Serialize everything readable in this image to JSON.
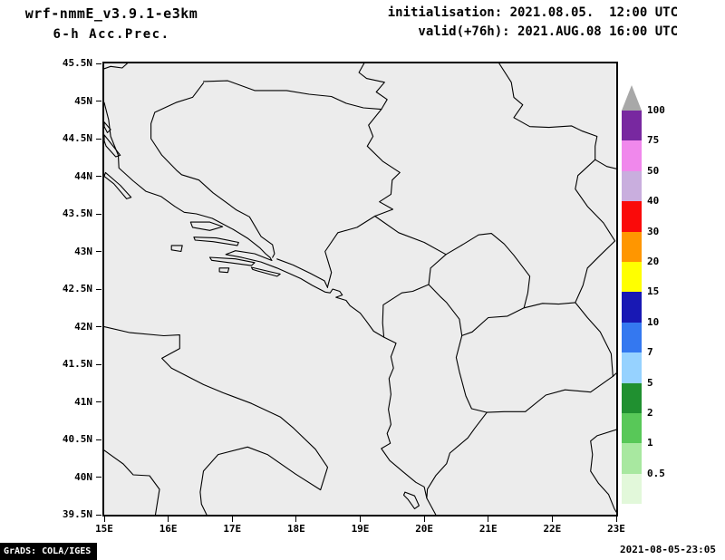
{
  "header": {
    "model": "wrf-nmmE_v3.9.1-e3km",
    "product": "6-h Acc.Prec.",
    "init": "initialisation: 2021.08.05.  12:00 UTC",
    "valid": "valid(+76h): 2021.AUG.08 16:00 UTC"
  },
  "axes": {
    "x_ticks": [
      "15E",
      "16E",
      "17E",
      "18E",
      "19E",
      "20E",
      "21E",
      "22E",
      "23E"
    ],
    "y_ticks": [
      "45.5N",
      "45N",
      "44.5N",
      "44N",
      "43.5N",
      "43N",
      "42.5N",
      "42N",
      "41.5N",
      "41N",
      "40.5N",
      "40N",
      "39.5N"
    ]
  },
  "colorbar": {
    "levels_top_to_bottom": [
      "100",
      "75",
      "50",
      "40",
      "30",
      "20",
      "15",
      "10",
      "7",
      "5",
      "2",
      "1",
      "0.5"
    ],
    "colors_top_to_bottom": [
      "#a8a8a8",
      "#7828a0",
      "#f088ec",
      "#c9aede",
      "#fa0a0a",
      "#ff9600",
      "#ffff00",
      "#1818b4",
      "#3478f0",
      "#96d2ff",
      "#209030",
      "#58c858",
      "#a8e8a0",
      "#e2f8da"
    ]
  },
  "footer": {
    "credit": "GrADS: COLA/IGES",
    "timestamp": "2021-08-05-23:05"
  },
  "chart_data": {
    "type": "map",
    "field": "6-h Acc.Prec.",
    "model": "wrf-nmmE_v3.9.1-e3km",
    "initialisation": "2021.08.05. 12:00 UTC",
    "valid": "2021.AUG.08 16:00 UTC (+76h)",
    "lon_range_deg_e": [
      15,
      23
    ],
    "lat_range_deg_n": [
      39.5,
      45.5
    ],
    "colorbar_levels": [
      0.5,
      1,
      2,
      5,
      7,
      10,
      15,
      20,
      30,
      40,
      50,
      75,
      100
    ],
    "note": "Map of Adriatic/Balkan country borders and coastlines; no shaded precipitation visible (field below lowest level everywhere in view)."
  }
}
